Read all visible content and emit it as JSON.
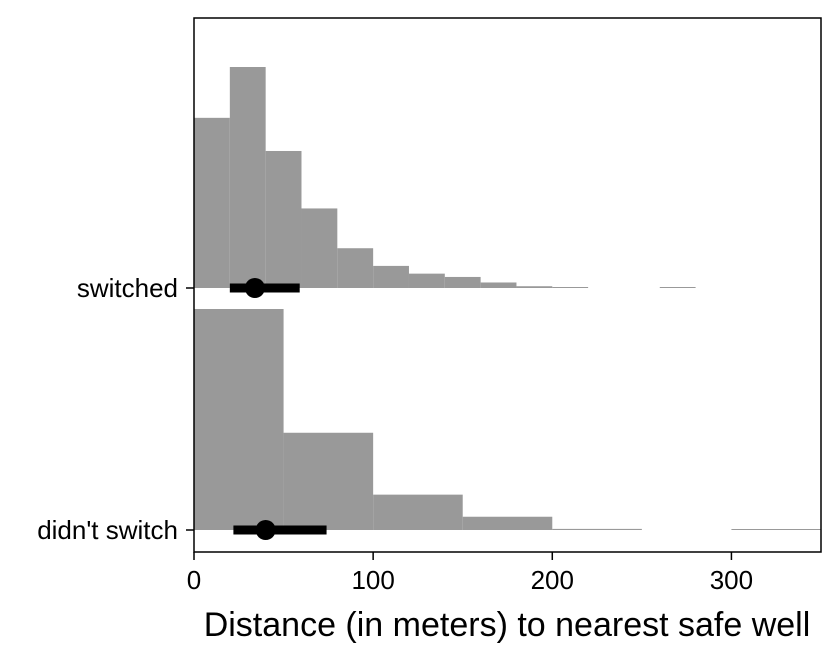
{
  "chart_data": {
    "type": "histogram-halfeye",
    "title": "",
    "xlabel": "Distance (in meters) to nearest safe well",
    "ylabel": "",
    "xlim": [
      0,
      350
    ],
    "x_ticks": [
      0,
      100,
      200,
      300
    ],
    "categories": [
      "switched",
      "didn't switch"
    ],
    "bar_color": "#999999",
    "point_color": "#000000",
    "grid": false,
    "legend": "none",
    "series": [
      {
        "name": "switched",
        "bins": [
          {
            "x0": 0,
            "x1": 20,
            "height": 0.77
          },
          {
            "x0": 20,
            "x1": 40,
            "height": 1.0
          },
          {
            "x0": 40,
            "x1": 60,
            "height": 0.62
          },
          {
            "x0": 60,
            "x1": 80,
            "height": 0.36
          },
          {
            "x0": 80,
            "x1": 100,
            "height": 0.18
          },
          {
            "x0": 100,
            "x1": 120,
            "height": 0.1
          },
          {
            "x0": 120,
            "x1": 140,
            "height": 0.065
          },
          {
            "x0": 140,
            "x1": 160,
            "height": 0.05
          },
          {
            "x0": 160,
            "x1": 180,
            "height": 0.025
          },
          {
            "x0": 180,
            "x1": 200,
            "height": 0.008
          },
          {
            "x0": 200,
            "x1": 220,
            "height": 0.003
          },
          {
            "x0": 220,
            "x1": 240,
            "height": 0
          },
          {
            "x0": 240,
            "x1": 260,
            "height": 0
          },
          {
            "x0": 260,
            "x1": 280,
            "height": 0.003
          }
        ],
        "point": 34,
        "interval": [
          20,
          59
        ]
      },
      {
        "name": "didn't switch",
        "bins": [
          {
            "x0": 0,
            "x1": 50,
            "height": 1.0
          },
          {
            "x0": 50,
            "x1": 100,
            "height": 0.44
          },
          {
            "x0": 100,
            "x1": 150,
            "height": 0.16
          },
          {
            "x0": 150,
            "x1": 200,
            "height": 0.06
          },
          {
            "x0": 200,
            "x1": 250,
            "height": 0.005
          },
          {
            "x0": 250,
            "x1": 300,
            "height": 0
          },
          {
            "x0": 300,
            "x1": 350,
            "height": 0.003
          }
        ],
        "point": 40,
        "interval": [
          22,
          74
        ]
      }
    ]
  }
}
